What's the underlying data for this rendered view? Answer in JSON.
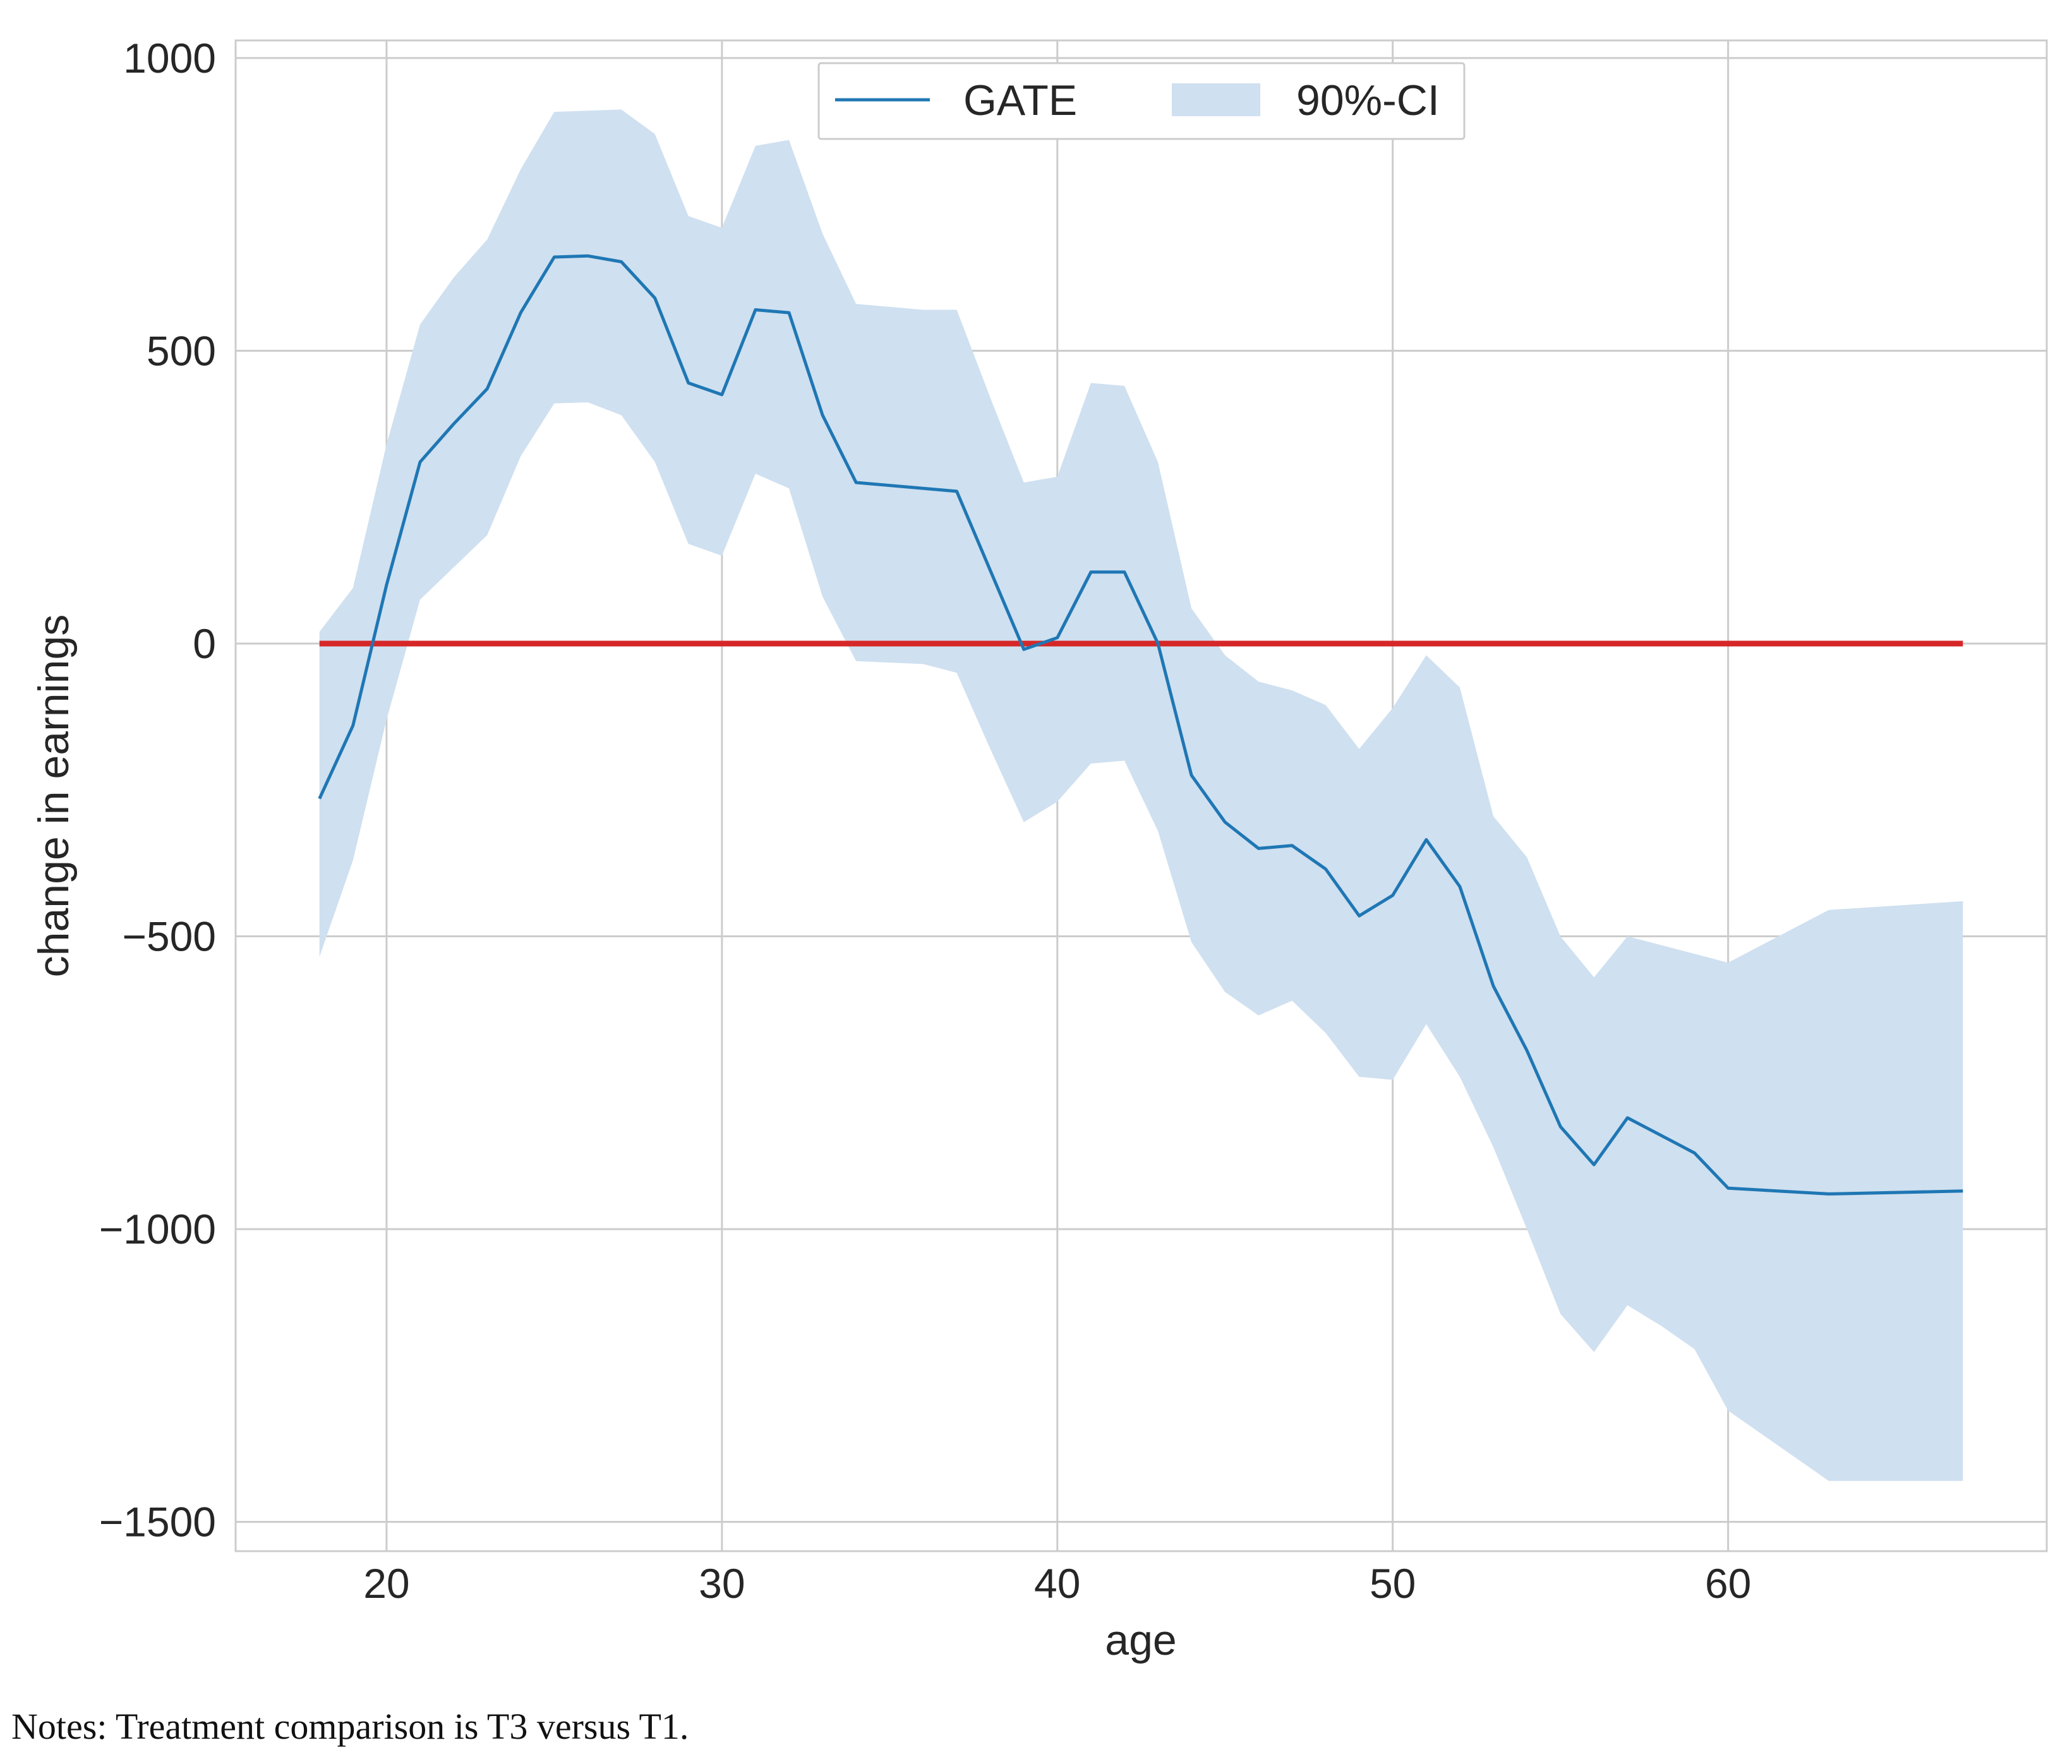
{
  "chart_data": {
    "type": "line",
    "title": "",
    "xlabel": "age",
    "ylabel": "change in earnings",
    "xlim": [
      15.5,
      69.5
    ],
    "ylim": [
      -1550,
      1030
    ],
    "xticks": [
      20,
      30,
      40,
      50,
      60
    ],
    "xtick_labels": [
      "20",
      "30",
      "40",
      "50",
      "60"
    ],
    "yticks": [
      1000,
      500,
      0,
      -500,
      -1000,
      -1500
    ],
    "ytick_labels": [
      "1000",
      "500",
      "0",
      "−500",
      "−1000",
      "−1500"
    ],
    "grid": true,
    "legend_position": "top-center",
    "colors": {
      "gate_line": "#1f77b4",
      "ci_fill": "#cfe0f0",
      "reference_line": "#d62728",
      "grid": "#cccccc",
      "frame": "#cccccc"
    },
    "series": [
      {
        "name": "GATE",
        "kind": "line",
        "x": [
          18,
          19,
          20,
          21,
          22,
          23,
          24,
          25,
          26,
          27,
          28,
          29,
          30,
          31,
          32,
          33,
          34,
          37,
          38,
          39,
          40,
          41,
          42,
          43,
          44,
          45,
          46,
          47,
          48,
          49,
          50,
          51,
          52,
          53,
          54,
          55,
          56,
          57,
          58,
          59,
          60,
          63,
          67
        ],
        "values": [
          -265,
          -140,
          100,
          310,
          375,
          435,
          565,
          660,
          662,
          652,
          590,
          445,
          425,
          570,
          565,
          390,
          275,
          260,
          125,
          -10,
          10,
          122,
          122,
          0,
          -225,
          -305,
          -350,
          -345,
          -385,
          -465,
          -430,
          -335,
          -415,
          -585,
          -695,
          -825,
          -890,
          -810,
          -840,
          -870,
          -930,
          -940,
          -935
        ]
      },
      {
        "name": "90%-CI",
        "kind": "band",
        "x": [
          18,
          19,
          20,
          21,
          22,
          23,
          24,
          25,
          26,
          27,
          28,
          29,
          30,
          31,
          32,
          33,
          34,
          36,
          37,
          38,
          39,
          40,
          41,
          42,
          43,
          44,
          45,
          46,
          47,
          48,
          49,
          50,
          51,
          52,
          53,
          54,
          55,
          56,
          57,
          58,
          59,
          60,
          63,
          67
        ],
        "lower": [
          -535,
          -370,
          -130,
          75,
          130,
          185,
          320,
          410,
          412,
          390,
          310,
          170,
          150,
          290,
          265,
          80,
          -30,
          -35,
          -50,
          -180,
          -305,
          -270,
          -205,
          -200,
          -320,
          -510,
          -595,
          -635,
          -610,
          -665,
          -740,
          -745,
          -650,
          -740,
          -860,
          -1000,
          -1145,
          -1210,
          -1130,
          -1165,
          -1205,
          -1310,
          -1430,
          -1430
        ],
        "upper": [
          20,
          95,
          340,
          545,
          625,
          690,
          810,
          908,
          910,
          912,
          870,
          730,
          710,
          850,
          860,
          700,
          580,
          570,
          570,
          420,
          275,
          285,
          445,
          440,
          310,
          60,
          -20,
          -65,
          -80,
          -105,
          -180,
          -110,
          -20,
          -75,
          -295,
          -365,
          -500,
          -570,
          -500,
          -515,
          -530,
          -545,
          -455,
          -440
        ]
      },
      {
        "name": "zero line",
        "kind": "reference",
        "x": [
          18,
          67
        ],
        "values": [
          0,
          0
        ]
      }
    ],
    "legend": [
      "GATE",
      "90%-CI"
    ]
  },
  "notes": {
    "text": "Notes: Treatment comparison is T3 versus T1."
  }
}
